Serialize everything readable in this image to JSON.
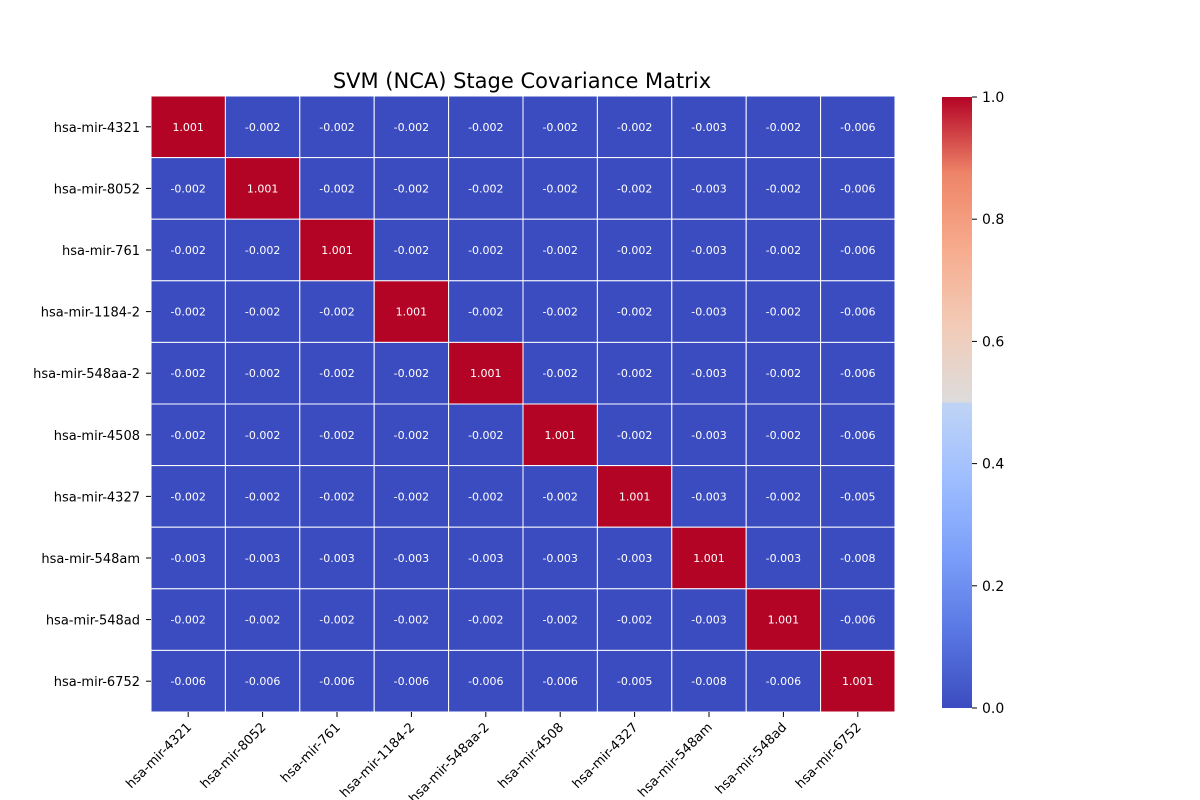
{
  "chart_data": {
    "type": "heatmap",
    "title": "SVM (NCA) Stage Covariance Matrix",
    "xlabel": "",
    "ylabel": "",
    "labels": [
      "hsa-mir-4321",
      "hsa-mir-8052",
      "hsa-mir-761",
      "hsa-mir-1184-2",
      "hsa-mir-548aa-2",
      "hsa-mir-4508",
      "hsa-mir-4327",
      "hsa-mir-548am",
      "hsa-mir-548ad",
      "hsa-mir-6752"
    ],
    "values": [
      [
        1.001,
        -0.002,
        -0.002,
        -0.002,
        -0.002,
        -0.002,
        -0.002,
        -0.003,
        -0.002,
        -0.006
      ],
      [
        -0.002,
        1.001,
        -0.002,
        -0.002,
        -0.002,
        -0.002,
        -0.002,
        -0.003,
        -0.002,
        -0.006
      ],
      [
        -0.002,
        -0.002,
        1.001,
        -0.002,
        -0.002,
        -0.002,
        -0.002,
        -0.003,
        -0.002,
        -0.006
      ],
      [
        -0.002,
        -0.002,
        -0.002,
        1.001,
        -0.002,
        -0.002,
        -0.002,
        -0.003,
        -0.002,
        -0.006
      ],
      [
        -0.002,
        -0.002,
        -0.002,
        -0.002,
        1.001,
        -0.002,
        -0.002,
        -0.003,
        -0.002,
        -0.006
      ],
      [
        -0.002,
        -0.002,
        -0.002,
        -0.002,
        -0.002,
        1.001,
        -0.002,
        -0.003,
        -0.002,
        -0.006
      ],
      [
        -0.002,
        -0.002,
        -0.002,
        -0.002,
        -0.002,
        -0.002,
        1.001,
        -0.003,
        -0.002,
        -0.005
      ],
      [
        -0.003,
        -0.003,
        -0.003,
        -0.003,
        -0.003,
        -0.003,
        -0.003,
        1.001,
        -0.003,
        -0.008
      ],
      [
        -0.002,
        -0.002,
        -0.002,
        -0.002,
        -0.002,
        -0.002,
        -0.002,
        -0.003,
        1.001,
        -0.006
      ],
      [
        -0.006,
        -0.006,
        -0.006,
        -0.006,
        -0.006,
        -0.006,
        -0.005,
        -0.008,
        -0.006,
        1.001
      ]
    ],
    "colormap": "coolwarm",
    "colorbar": {
      "min": 0.0,
      "max": 1.0,
      "ticks": [
        "0.0",
        "0.2",
        "0.4",
        "0.6",
        "0.8",
        "1.0"
      ]
    },
    "colors": {
      "low": "#3b4cc0",
      "mid": "#dddddd",
      "high": "#b40426",
      "gridline": "#ffffff"
    },
    "grid": false,
    "legend": "colorbar-right"
  }
}
